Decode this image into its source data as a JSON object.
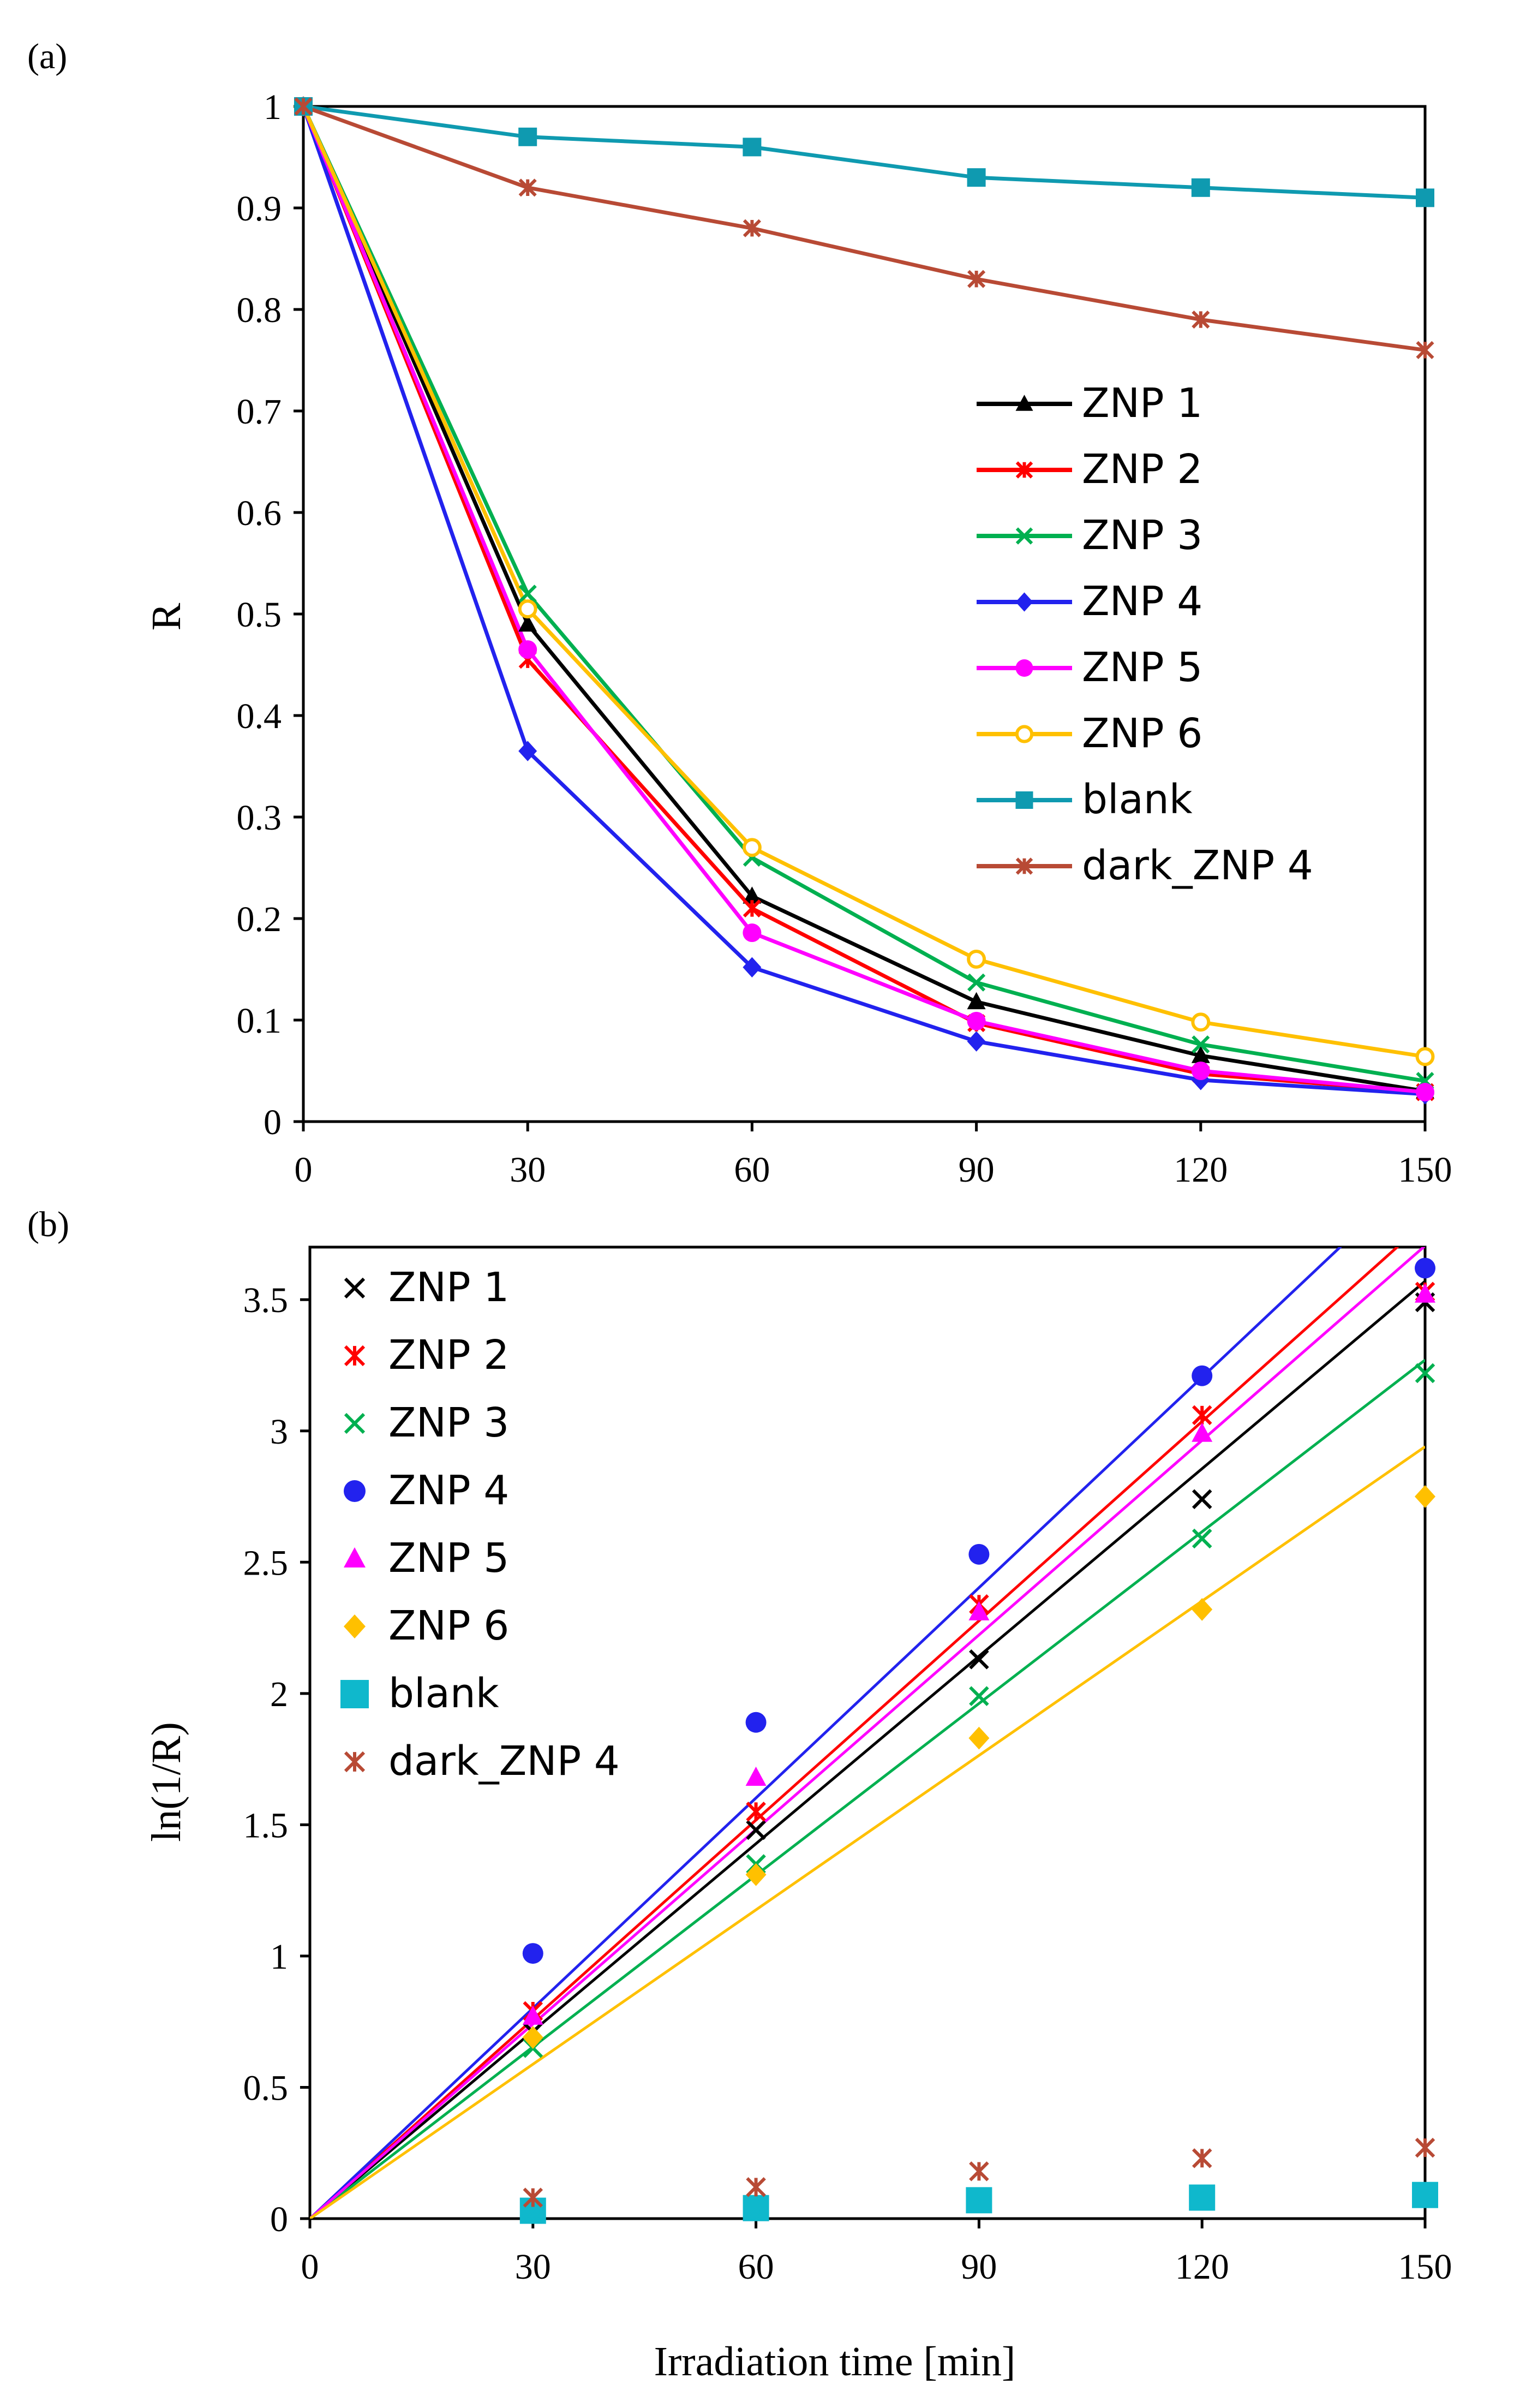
{
  "chart_data": [
    {
      "type": "line",
      "panel_label": "(a)",
      "title": "",
      "xlabel": "",
      "ylabel": "R",
      "xlim": [
        0,
        150
      ],
      "ylim": [
        0,
        1
      ],
      "x_ticks": [
        0,
        30,
        60,
        90,
        120,
        150
      ],
      "y_ticks": [
        0,
        0.1,
        0.2,
        0.3,
        0.4,
        0.5,
        0.6,
        0.7,
        0.8,
        0.9,
        1
      ],
      "y_tick_labels": [
        "0",
        "0.1",
        "0.2",
        "0.3",
        "0.4",
        "0.5",
        "0.6",
        "0.7",
        "0.8",
        "0.9",
        "1"
      ],
      "grid": false,
      "legend_position": "right-middle",
      "x": [
        0,
        30,
        60,
        90,
        120,
        150
      ],
      "series": [
        {
          "name": "ZNP 1",
          "color": "#000000",
          "marker": "triangle",
          "values": [
            1,
            0.49,
            0.222,
            0.118,
            0.065,
            0.03
          ]
        },
        {
          "name": "ZNP 2",
          "color": "#ff0000",
          "marker": "asterisk",
          "values": [
            1,
            0.455,
            0.21,
            0.097,
            0.047,
            0.029
          ]
        },
        {
          "name": "ZNP 3",
          "color": "#00b050",
          "marker": "x",
          "values": [
            1,
            0.52,
            0.26,
            0.137,
            0.076,
            0.04
          ]
        },
        {
          "name": "ZNP 4",
          "color": "#2222ee",
          "marker": "diamond",
          "values": [
            1,
            0.365,
            0.152,
            0.079,
            0.041,
            0.027
          ]
        },
        {
          "name": "ZNP 5",
          "color": "#ff00ff",
          "marker": "circle",
          "values": [
            1,
            0.465,
            0.186,
            0.099,
            0.05,
            0.029
          ]
        },
        {
          "name": "ZNP 6",
          "color": "#ffc000",
          "marker": "open-circle",
          "values": [
            1,
            0.505,
            0.27,
            0.16,
            0.098,
            0.064
          ]
        },
        {
          "name": "blank",
          "color": "#0f9ab0",
          "marker": "square",
          "values": [
            1,
            0.97,
            0.96,
            0.93,
            0.92,
            0.91
          ]
        },
        {
          "name": "dark_ZNP 4",
          "color": "#b84a35",
          "marker": "asterisk",
          "values": [
            1,
            0.92,
            0.88,
            0.83,
            0.79,
            0.76
          ]
        }
      ]
    },
    {
      "type": "scatter",
      "panel_label": "(b)",
      "title": "",
      "xlabel": "Irradiation time [min]",
      "ylabel": "ln(1/R)",
      "xlim": [
        0,
        150
      ],
      "ylim": [
        0,
        3.7
      ],
      "x_ticks": [
        0,
        30,
        60,
        90,
        120,
        150
      ],
      "y_ticks": [
        0,
        0.5,
        1,
        1.5,
        2,
        2.5,
        3,
        3.5
      ],
      "y_tick_labels": [
        "0",
        "0.5",
        "1",
        "1.5",
        "2",
        "2.5",
        "3",
        "3.5"
      ],
      "grid": false,
      "legend_position": "top-left",
      "x": [
        30,
        60,
        90,
        120,
        150
      ],
      "series": [
        {
          "name": "ZNP 1",
          "color": "#000000",
          "marker": "x",
          "values": [
            0.71,
            1.48,
            2.13,
            2.74,
            3.49
          ],
          "fit_slope": 0.0238
        },
        {
          "name": "ZNP 2",
          "color": "#ff0000",
          "marker": "asterisk",
          "values": [
            0.79,
            1.55,
            2.34,
            3.06,
            3.53
          ],
          "fit_slope": 0.0253
        },
        {
          "name": "ZNP 3",
          "color": "#00b050",
          "marker": "x",
          "values": [
            0.65,
            1.35,
            1.99,
            2.59,
            3.22
          ],
          "fit_slope": 0.0218
        },
        {
          "name": "ZNP 4",
          "color": "#2222ee",
          "marker": "circle",
          "values": [
            1.01,
            1.89,
            2.53,
            3.21,
            3.62
          ],
          "fit_slope": 0.0267
        },
        {
          "name": "ZNP 5",
          "color": "#ff00ff",
          "marker": "triangle",
          "values": [
            0.77,
            1.68,
            2.31,
            2.99,
            3.52
          ],
          "fit_slope": 0.0247
        },
        {
          "name": "ZNP 6",
          "color": "#ffc000",
          "marker": "diamond",
          "values": [
            0.69,
            1.31,
            1.83,
            2.32,
            2.75
          ],
          "fit_slope": 0.0196
        },
        {
          "name": "blank",
          "color": "#0fb8cc",
          "marker": "square",
          "values": [
            0.03,
            0.04,
            0.07,
            0.08,
            0.09
          ]
        },
        {
          "name": "dark_ZNP 4",
          "color": "#b84a35",
          "marker": "asterisk",
          "values": [
            0.08,
            0.12,
            0.18,
            0.23,
            0.27
          ]
        }
      ]
    }
  ]
}
